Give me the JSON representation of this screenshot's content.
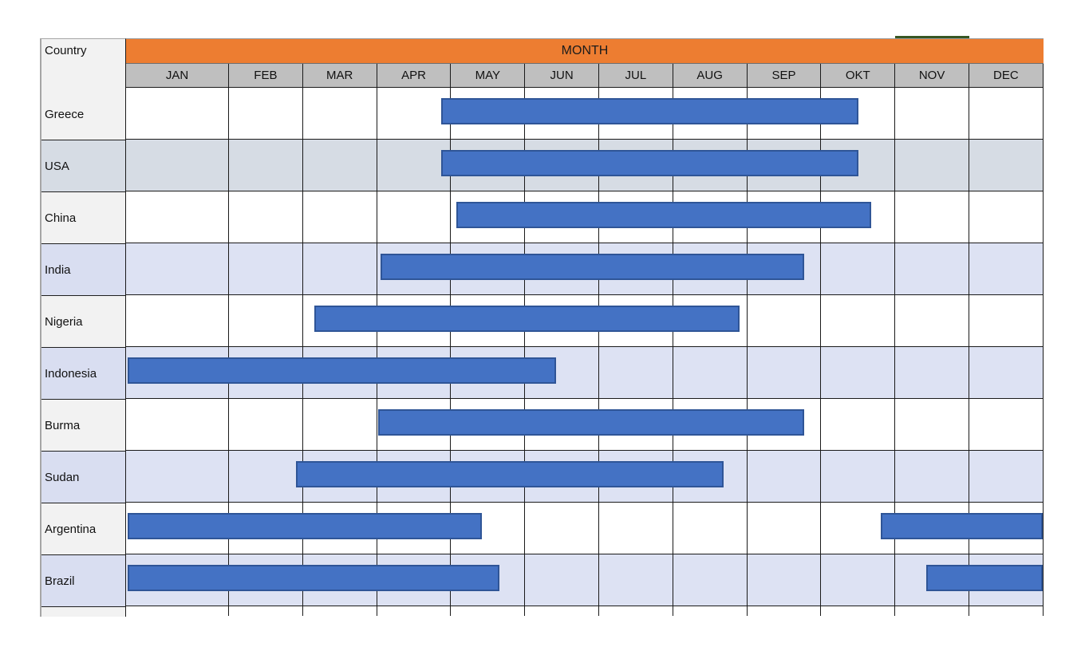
{
  "table": {
    "corner_label": "Country",
    "banner_label": "MONTH"
  },
  "colors": {
    "banner_orange": "#ed7d31",
    "month_header_gray": "#bfbfbf",
    "bar_fill": "#4472c4",
    "bar_border": "#2f5597",
    "green_accent": "#375623",
    "row_month_white": "#ffffff",
    "row_month_bluegray": "#d6dce4",
    "row_month_lavender": "#dde2f3",
    "country_cell_light": "#f2f2f2",
    "country_cell_bluegray": "#d6dce4",
    "country_cell_lavender": "#d9def1"
  },
  "chart_data": {
    "type": "bar",
    "subtype": "gantt-month-ranges",
    "title": "MONTH",
    "orientation": "horizontal",
    "x_axis_unit": "months, 0 = start of JAN, 12 = end of DEC",
    "months": [
      "JAN",
      "FEB",
      "MAR",
      "APR",
      "MAY",
      "JUN",
      "JUL",
      "AUG",
      "SEP",
      "OKT",
      "NOV",
      "DEC"
    ],
    "green_mark_month_span": [
      10,
      11
    ],
    "rows": [
      {
        "country": "Greece",
        "shade": "white",
        "bars": [
          {
            "start": 3.87,
            "end": 9.5
          }
        ]
      },
      {
        "country": "USA",
        "shade": "bluegray",
        "bars": [
          {
            "start": 3.87,
            "end": 9.5
          }
        ]
      },
      {
        "country": "China",
        "shade": "white",
        "bars": [
          {
            "start": 4.07,
            "end": 9.68
          }
        ]
      },
      {
        "country": "India",
        "shade": "lavender",
        "bars": [
          {
            "start": 3.05,
            "end": 8.77
          }
        ]
      },
      {
        "country": "Nigeria",
        "shade": "white",
        "bars": [
          {
            "start": 2.15,
            "end": 7.9
          }
        ]
      },
      {
        "country": "Indonesia",
        "shade": "lavender",
        "bars": [
          {
            "start": 0.0,
            "end": 5.42
          }
        ]
      },
      {
        "country": "Burma",
        "shade": "white",
        "bars": [
          {
            "start": 3.02,
            "end": 8.77
          }
        ]
      },
      {
        "country": "Sudan",
        "shade": "lavender",
        "bars": [
          {
            "start": 1.9,
            "end": 7.68
          }
        ]
      },
      {
        "country": "Argentina",
        "shade": "white",
        "bars": [
          {
            "start": 0.0,
            "end": 4.42
          },
          {
            "start": 9.8,
            "end": 12.0
          }
        ]
      },
      {
        "country": "Brazil",
        "shade": "lavender",
        "bars": [
          {
            "start": 0.0,
            "end": 4.65
          },
          {
            "start": 10.42,
            "end": 12.0
          }
        ]
      }
    ]
  }
}
